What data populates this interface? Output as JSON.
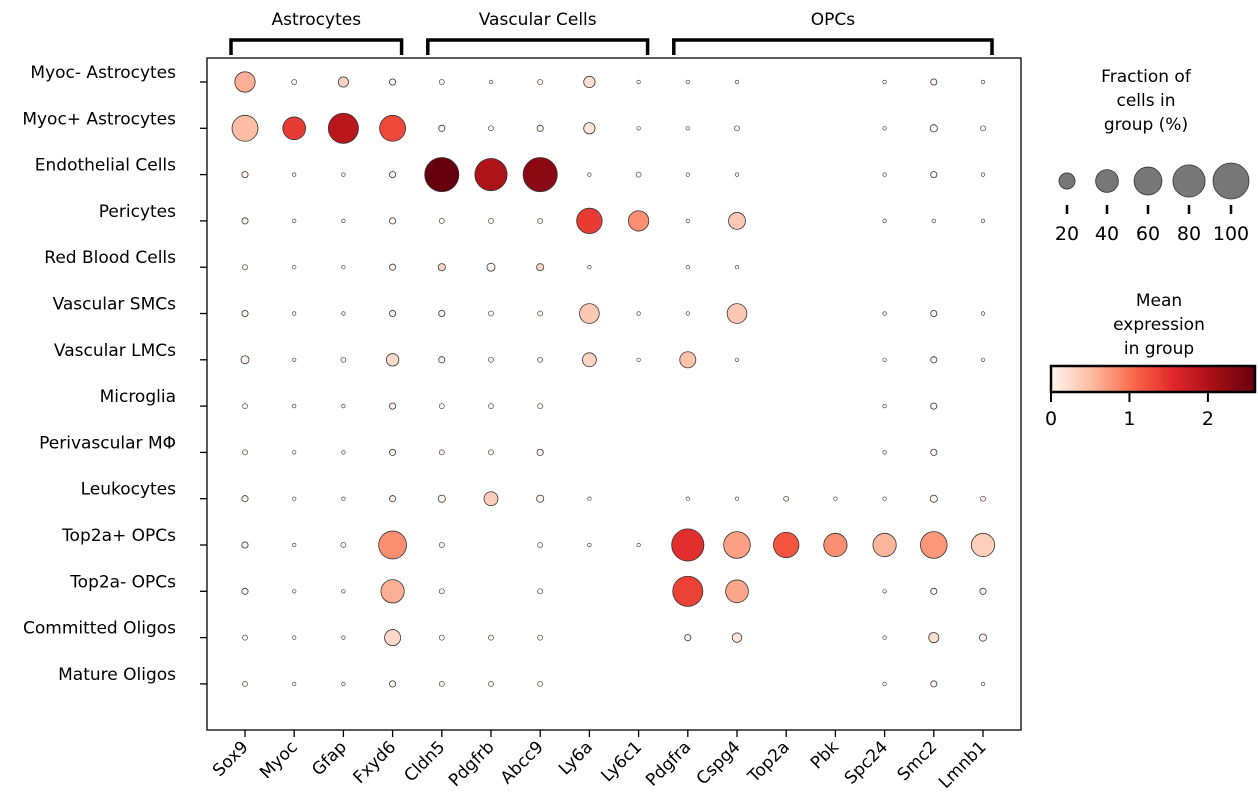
{
  "chart_data": {
    "type": "dotplot",
    "genes": [
      "Sox9",
      "Myoc",
      "Gfap",
      "Fxyd6",
      "Cldn5",
      "Pdgfrb",
      "Abcc9",
      "Ly6a",
      "Ly6c1",
      "Pdgfra",
      "Cspg4",
      "Top2a",
      "Pbk",
      "Spc24",
      "Smc2",
      "Lmnb1"
    ],
    "cell_types": [
      "Myoc- Astrocytes",
      "Myoc+ Astrocytes",
      "Endothelial Cells",
      "Pericytes",
      "Red Blood Cells",
      "Vascular SMCs",
      "Vascular LMCs",
      "Microglia",
      "Perivascular MΦ",
      "Leukocytes",
      "Top2a+ OPCs",
      "Top2a- OPCs",
      "Committed Oligos",
      "Mature Oligos"
    ],
    "gene_groups": [
      {
        "label": "Astrocytes",
        "start": 0,
        "end": 3
      },
      {
        "label": "Vascular Cells",
        "start": 4,
        "end": 8
      },
      {
        "label": "OPCs",
        "start": 9,
        "end": 15
      }
    ],
    "fraction_pct": [
      [
        32,
        2,
        8,
        3,
        2,
        1,
        2,
        10,
        1,
        1,
        1,
        0,
        0,
        1,
        3,
        1
      ],
      [
        52,
        40,
        70,
        52,
        3,
        2,
        3,
        10,
        1,
        1,
        2,
        0,
        0,
        1,
        4,
        2
      ],
      [
        3,
        1,
        1,
        3,
        90,
        80,
        90,
        1,
        2,
        1,
        1,
        0,
        0,
        1,
        3,
        1
      ],
      [
        3,
        1,
        1,
        3,
        2,
        2,
        2,
        50,
        32,
        1,
        22,
        0,
        0,
        1,
        1,
        1
      ],
      [
        2,
        1,
        1,
        3,
        4,
        5,
        4,
        1,
        0,
        1,
        1,
        0,
        0,
        0,
        0,
        0
      ],
      [
        3,
        1,
        1,
        3,
        3,
        2,
        2,
        30,
        1,
        1,
        30,
        0,
        0,
        1,
        3,
        1
      ],
      [
        5,
        1,
        2,
        12,
        3,
        2,
        2,
        15,
        1,
        20,
        1,
        0,
        0,
        1,
        3,
        1
      ],
      [
        2,
        1,
        1,
        3,
        2,
        2,
        2,
        0,
        0,
        0,
        0,
        0,
        0,
        1,
        3,
        0
      ],
      [
        2,
        1,
        1,
        3,
        2,
        2,
        3,
        0,
        0,
        0,
        0,
        0,
        0,
        1,
        3,
        0
      ],
      [
        3,
        1,
        1,
        3,
        4,
        15,
        4,
        1,
        0,
        1,
        1,
        2,
        1,
        1,
        4,
        2
      ],
      [
        3,
        1,
        2,
        60,
        2,
        0,
        2,
        1,
        1,
        80,
        55,
        50,
        42,
        42,
        55,
        42
      ],
      [
        3,
        1,
        1,
        42,
        2,
        0,
        2,
        0,
        0,
        70,
        40,
        0,
        0,
        1,
        3,
        3
      ],
      [
        2,
        1,
        1,
        20,
        2,
        2,
        2,
        0,
        0,
        3,
        7,
        0,
        0,
        1,
        8,
        4
      ],
      [
        2,
        1,
        1,
        3,
        2,
        2,
        2,
        0,
        0,
        0,
        0,
        0,
        0,
        1,
        3,
        1
      ]
    ],
    "mean_expression": [
      [
        0.6,
        0,
        0.3,
        0,
        0,
        0,
        0,
        0.2,
        0,
        0,
        0,
        0,
        0,
        0,
        0,
        0
      ],
      [
        0.5,
        1.4,
        1.9,
        1.3,
        0,
        0,
        0,
        0.15,
        0,
        0,
        0,
        0,
        0,
        0,
        0,
        0
      ],
      [
        0,
        0,
        0,
        0,
        2.7,
        2.0,
        2.3,
        0,
        0,
        0,
        0,
        0,
        0,
        0,
        0,
        0
      ],
      [
        0,
        0,
        0,
        0,
        0,
        0,
        0,
        1.4,
        0.8,
        0,
        0.4,
        0,
        0,
        0,
        0,
        0
      ],
      [
        0,
        0,
        0,
        0,
        0.3,
        0,
        0.3,
        0,
        0,
        0,
        0,
        0,
        0,
        0,
        0,
        0
      ],
      [
        0,
        0,
        0,
        0,
        0,
        0,
        0,
        0.4,
        0,
        0,
        0.4,
        0,
        0,
        0,
        0,
        0
      ],
      [
        0,
        0,
        0,
        0.25,
        0,
        0,
        0,
        0.3,
        0,
        0.45,
        0,
        0,
        0,
        0,
        0,
        0
      ],
      [
        0,
        0,
        0,
        0,
        0,
        0,
        0,
        0,
        0,
        0,
        0,
        0,
        0,
        0,
        0,
        0
      ],
      [
        0,
        0,
        0,
        0,
        0,
        0,
        0,
        0,
        0,
        0,
        0,
        0,
        0,
        0,
        0,
        0
      ],
      [
        0,
        0,
        0,
        0,
        0,
        0.35,
        0,
        0,
        0,
        0,
        0,
        0,
        0,
        0,
        0,
        0
      ],
      [
        0,
        0,
        0,
        0.8,
        0,
        0,
        0,
        0,
        0,
        1.5,
        0.7,
        1.2,
        0.8,
        0.55,
        0.75,
        0.35
      ],
      [
        0,
        0,
        0,
        0.6,
        0,
        0,
        0,
        0,
        0,
        1.35,
        0.65,
        0,
        0,
        0,
        0,
        0
      ],
      [
        0,
        0,
        0,
        0.25,
        0,
        0,
        0,
        0,
        0,
        0,
        0.15,
        0,
        0,
        0,
        0.2,
        0
      ],
      [
        0,
        0,
        0,
        0,
        0,
        0,
        0,
        0,
        0,
        0,
        0,
        0,
        0,
        0,
        0,
        0
      ]
    ],
    "size_legend": {
      "title": [
        "Fraction of",
        "cells in",
        "group (%)"
      ],
      "values": [
        20,
        40,
        60,
        80,
        100
      ],
      "tick_labels": [
        "20",
        "40",
        "60",
        "80",
        "100"
      ]
    },
    "color_legend": {
      "title": [
        "Mean",
        "expression",
        "in group"
      ],
      "min": 0,
      "max": 2.6,
      "ticks": [
        0,
        1,
        2
      ],
      "tick_labels": [
        "0",
        "1",
        "2"
      ],
      "colormap": [
        "#fff5f0",
        "#fcbba1",
        "#fb6a4a",
        "#e0262a",
        "#a50f15",
        "#67000d"
      ]
    },
    "dot_fill_gray": "#777777",
    "dot_outline": "#333333"
  }
}
